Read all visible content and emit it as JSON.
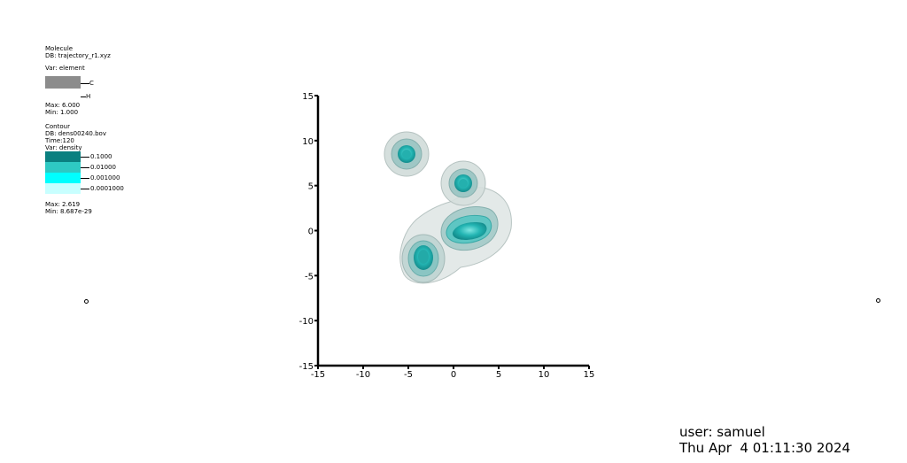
{
  "molecule_legend": {
    "title": "Molecule",
    "db": "DB: trajectory_r1.xyz",
    "var": "Var: element",
    "entries": [
      {
        "label": "C",
        "color": "#8c8c8c"
      },
      {
        "label": "H",
        "color": "#ffffff"
      }
    ],
    "max": "Max:  6.000",
    "min": "Min:  1.000"
  },
  "contour_legend": {
    "title": "Contour",
    "db": "DB: dens00240.bov",
    "time": "Time:120",
    "var": "Var: density",
    "levels": [
      {
        "label": "0.1000",
        "color": "#0a8080"
      },
      {
        "label": "0.01000",
        "color": "#2ec9c3"
      },
      {
        "label": "0.001000",
        "color": "#00ffff"
      },
      {
        "label": "0.0001000",
        "color": "#c8ffff"
      }
    ],
    "max": "Max:  2.619",
    "min": "Min:  8.687e-29"
  },
  "axes": {
    "x_ticks": [
      "-15",
      "-10",
      "-5",
      "0",
      "5",
      "10",
      "15"
    ],
    "y_ticks": [
      "15",
      "10",
      "5",
      "0",
      "-5",
      "-10",
      "-15"
    ],
    "x_range": [
      -15,
      15
    ],
    "y_range": [
      -15,
      15
    ]
  },
  "user_info": {
    "user": "user: samuel",
    "datetime": "Thu Apr  4 01:11:30 2024"
  }
}
